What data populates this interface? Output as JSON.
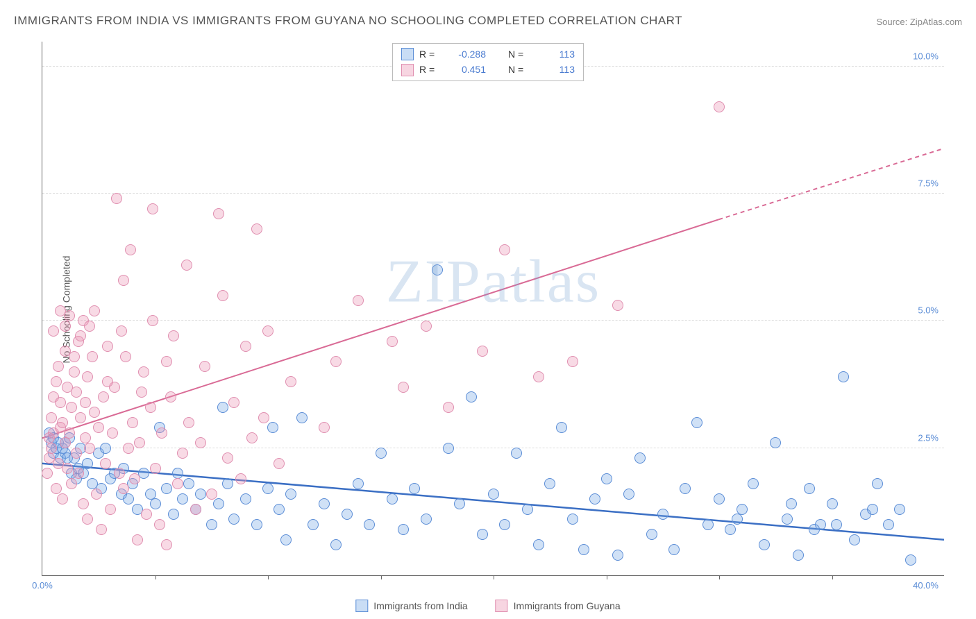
{
  "title": "IMMIGRANTS FROM INDIA VS IMMIGRANTS FROM GUYANA NO SCHOOLING COMPLETED CORRELATION CHART",
  "source": "Source: ZipAtlas.com",
  "y_axis_label": "No Schooling Completed",
  "watermark": "ZIPatlas",
  "chart": {
    "type": "scatter",
    "xlim": [
      0,
      40
    ],
    "ylim": [
      0,
      10.5
    ],
    "xmin_label": "0.0%",
    "xmax_label": "40.0%",
    "y_ticks": [
      2.5,
      5.0,
      7.5,
      10.0
    ],
    "y_tick_labels": [
      "2.5%",
      "5.0%",
      "7.5%",
      "10.0%"
    ],
    "x_minor_ticks": [
      5,
      10,
      15,
      20,
      25,
      30,
      35
    ],
    "grid_color": "#dddddd",
    "axis_color": "#666666",
    "bg": "#ffffff",
    "marker_radius": 8,
    "series": [
      {
        "name": "Immigrants from India",
        "color_fill": "rgba(120,170,230,0.35)",
        "color_stroke": "#5b8dd6",
        "R": "-0.288",
        "N": "113",
        "trend": {
          "x1": 0,
          "y1": 2.2,
          "x2": 40,
          "y2": 0.7,
          "color": "#3b6fc4",
          "width": 2.5
        },
        "points": [
          [
            0.3,
            2.8
          ],
          [
            0.4,
            2.6
          ],
          [
            0.5,
            2.4
          ],
          [
            0.5,
            2.7
          ],
          [
            0.6,
            2.5
          ],
          [
            0.7,
            2.6
          ],
          [
            0.8,
            2.3
          ],
          [
            0.9,
            2.5
          ],
          [
            1.0,
            2.6
          ],
          [
            1.0,
            2.4
          ],
          [
            1.1,
            2.3
          ],
          [
            1.2,
            2.7
          ],
          [
            1.3,
            2.0
          ],
          [
            1.4,
            2.3
          ],
          [
            1.5,
            1.9
          ],
          [
            1.6,
            2.1
          ],
          [
            1.7,
            2.5
          ],
          [
            1.8,
            2.0
          ],
          [
            2.0,
            2.2
          ],
          [
            2.2,
            1.8
          ],
          [
            2.5,
            2.4
          ],
          [
            2.6,
            1.7
          ],
          [
            2.8,
            2.5
          ],
          [
            3.0,
            1.9
          ],
          [
            3.2,
            2.0
          ],
          [
            3.5,
            1.6
          ],
          [
            3.6,
            2.1
          ],
          [
            3.8,
            1.5
          ],
          [
            4.0,
            1.8
          ],
          [
            4.2,
            1.3
          ],
          [
            4.5,
            2.0
          ],
          [
            4.8,
            1.6
          ],
          [
            5.0,
            1.4
          ],
          [
            5.2,
            2.9
          ],
          [
            5.5,
            1.7
          ],
          [
            5.8,
            1.2
          ],
          [
            6.0,
            2.0
          ],
          [
            6.2,
            1.5
          ],
          [
            6.5,
            1.8
          ],
          [
            6.8,
            1.3
          ],
          [
            7.0,
            1.6
          ],
          [
            7.5,
            1.0
          ],
          [
            7.8,
            1.4
          ],
          [
            8.0,
            3.3
          ],
          [
            8.2,
            1.8
          ],
          [
            8.5,
            1.1
          ],
          [
            9.0,
            1.5
          ],
          [
            9.5,
            1.0
          ],
          [
            10.0,
            1.7
          ],
          [
            10.2,
            2.9
          ],
          [
            10.5,
            1.3
          ],
          [
            10.8,
            0.7
          ],
          [
            11.0,
            1.6
          ],
          [
            11.5,
            3.1
          ],
          [
            12.0,
            1.0
          ],
          [
            12.5,
            1.4
          ],
          [
            13.0,
            0.6
          ],
          [
            13.5,
            1.2
          ],
          [
            14.0,
            1.8
          ],
          [
            14.5,
            1.0
          ],
          [
            15.0,
            2.4
          ],
          [
            15.5,
            1.5
          ],
          [
            16.0,
            0.9
          ],
          [
            16.5,
            1.7
          ],
          [
            17.0,
            1.1
          ],
          [
            17.5,
            6.0
          ],
          [
            18.0,
            2.5
          ],
          [
            18.5,
            1.4
          ],
          [
            19.0,
            3.5
          ],
          [
            19.5,
            0.8
          ],
          [
            20.0,
            1.6
          ],
          [
            20.5,
            1.0
          ],
          [
            21.0,
            2.4
          ],
          [
            21.5,
            1.3
          ],
          [
            22.0,
            0.6
          ],
          [
            22.5,
            1.8
          ],
          [
            23.0,
            2.9
          ],
          [
            23.5,
            1.1
          ],
          [
            24.0,
            0.5
          ],
          [
            24.5,
            1.5
          ],
          [
            25.0,
            1.9
          ],
          [
            25.5,
            0.4
          ],
          [
            26.0,
            1.6
          ],
          [
            26.5,
            2.3
          ],
          [
            27.0,
            0.8
          ],
          [
            27.5,
            1.2
          ],
          [
            28.0,
            0.5
          ],
          [
            28.5,
            1.7
          ],
          [
            29.0,
            3.0
          ],
          [
            29.5,
            1.0
          ],
          [
            30.0,
            1.5
          ],
          [
            30.5,
            0.9
          ],
          [
            31.0,
            1.3
          ],
          [
            32.0,
            0.6
          ],
          [
            32.5,
            2.6
          ],
          [
            33.0,
            1.1
          ],
          [
            33.5,
            0.4
          ],
          [
            34.0,
            1.7
          ],
          [
            34.5,
            1.0
          ],
          [
            35.0,
            1.4
          ],
          [
            35.5,
            3.9
          ],
          [
            36.0,
            0.7
          ],
          [
            36.5,
            1.2
          ],
          [
            37.0,
            1.8
          ],
          [
            37.5,
            1.0
          ],
          [
            38.0,
            1.3
          ],
          [
            38.5,
            0.3
          ],
          [
            35.2,
            1.0
          ],
          [
            36.8,
            1.3
          ],
          [
            34.2,
            0.9
          ],
          [
            33.2,
            1.4
          ],
          [
            31.5,
            1.8
          ],
          [
            30.8,
            1.1
          ]
        ]
      },
      {
        "name": "Immigrants from Guyana",
        "color_fill": "rgba(235,150,180,0.35)",
        "color_stroke": "#e08fb0",
        "R": "0.451",
        "N": "113",
        "trend": {
          "x1": 0,
          "y1": 2.7,
          "x2": 30,
          "y2": 7.0,
          "color": "#d96a95",
          "width": 2,
          "dashed_extension": {
            "x1": 30,
            "y1": 7.0,
            "x2": 40,
            "y2": 8.4
          }
        },
        "points": [
          [
            0.2,
            2.0
          ],
          [
            0.3,
            2.3
          ],
          [
            0.3,
            2.7
          ],
          [
            0.4,
            3.1
          ],
          [
            0.4,
            2.5
          ],
          [
            0.5,
            3.5
          ],
          [
            0.5,
            2.8
          ],
          [
            0.6,
            1.7
          ],
          [
            0.6,
            3.8
          ],
          [
            0.7,
            2.2
          ],
          [
            0.7,
            4.1
          ],
          [
            0.8,
            2.9
          ],
          [
            0.8,
            3.4
          ],
          [
            0.9,
            1.5
          ],
          [
            0.9,
            3.0
          ],
          [
            1.0,
            4.4
          ],
          [
            1.0,
            2.6
          ],
          [
            1.1,
            3.7
          ],
          [
            1.1,
            2.1
          ],
          [
            1.2,
            5.1
          ],
          [
            1.2,
            2.8
          ],
          [
            1.3,
            3.3
          ],
          [
            1.3,
            1.8
          ],
          [
            1.4,
            4.0
          ],
          [
            1.5,
            2.4
          ],
          [
            1.5,
            3.6
          ],
          [
            1.6,
            4.6
          ],
          [
            1.6,
            2.0
          ],
          [
            1.7,
            3.1
          ],
          [
            1.8,
            1.4
          ],
          [
            1.8,
            5.0
          ],
          [
            1.9,
            2.7
          ],
          [
            2.0,
            3.9
          ],
          [
            2.0,
            1.1
          ],
          [
            2.1,
            2.5
          ],
          [
            2.2,
            4.3
          ],
          [
            2.3,
            3.2
          ],
          [
            2.4,
            1.6
          ],
          [
            2.5,
            2.9
          ],
          [
            2.6,
            0.9
          ],
          [
            2.7,
            3.5
          ],
          [
            2.8,
            2.2
          ],
          [
            2.9,
            4.5
          ],
          [
            3.0,
            1.3
          ],
          [
            3.1,
            2.8
          ],
          [
            3.2,
            3.7
          ],
          [
            3.3,
            7.4
          ],
          [
            3.4,
            2.0
          ],
          [
            3.5,
            4.8
          ],
          [
            3.6,
            1.7
          ],
          [
            3.8,
            2.5
          ],
          [
            3.9,
            6.4
          ],
          [
            4.0,
            3.0
          ],
          [
            4.1,
            1.9
          ],
          [
            4.2,
            0.7
          ],
          [
            4.3,
            2.6
          ],
          [
            4.5,
            4.0
          ],
          [
            4.6,
            1.2
          ],
          [
            4.8,
            3.3
          ],
          [
            4.9,
            7.2
          ],
          [
            5.0,
            2.1
          ],
          [
            5.2,
            1.0
          ],
          [
            5.3,
            2.8
          ],
          [
            5.5,
            0.6
          ],
          [
            5.7,
            3.5
          ],
          [
            5.8,
            4.7
          ],
          [
            6.0,
            1.8
          ],
          [
            6.2,
            2.4
          ],
          [
            6.4,
            6.1
          ],
          [
            6.5,
            3.0
          ],
          [
            6.8,
            1.3
          ],
          [
            7.0,
            2.6
          ],
          [
            7.2,
            4.1
          ],
          [
            7.5,
            1.6
          ],
          [
            7.8,
            7.1
          ],
          [
            8.0,
            5.5
          ],
          [
            8.2,
            2.3
          ],
          [
            8.5,
            3.4
          ],
          [
            8.8,
            1.9
          ],
          [
            9.0,
            4.5
          ],
          [
            9.3,
            2.7
          ],
          [
            9.5,
            6.8
          ],
          [
            9.8,
            3.1
          ],
          [
            10.0,
            4.8
          ],
          [
            10.5,
            2.2
          ],
          [
            11.0,
            3.8
          ],
          [
            12.5,
            2.9
          ],
          [
            13.0,
            4.2
          ],
          [
            14.0,
            5.4
          ],
          [
            15.5,
            4.6
          ],
          [
            16.0,
            3.7
          ],
          [
            17.0,
            4.9
          ],
          [
            18.0,
            3.3
          ],
          [
            19.5,
            4.4
          ],
          [
            20.5,
            6.4
          ],
          [
            22.0,
            3.9
          ],
          [
            23.5,
            4.2
          ],
          [
            25.5,
            5.3
          ],
          [
            30.0,
            9.2
          ],
          [
            1.0,
            4.9
          ],
          [
            2.3,
            5.2
          ],
          [
            3.6,
            5.8
          ],
          [
            4.9,
            5.0
          ],
          [
            0.8,
            5.2
          ],
          [
            1.4,
            4.3
          ],
          [
            0.5,
            4.8
          ],
          [
            1.7,
            4.7
          ],
          [
            2.1,
            4.9
          ],
          [
            1.9,
            3.4
          ],
          [
            2.9,
            3.8
          ],
          [
            3.7,
            4.3
          ],
          [
            4.4,
            3.6
          ],
          [
            5.5,
            4.2
          ]
        ]
      }
    ],
    "legend_bottom": [
      {
        "swatch": "blue",
        "label": "Immigrants from India"
      },
      {
        "swatch": "pink",
        "label": "Immigrants from Guyana"
      }
    ],
    "legend_top_labels": {
      "R": "R =",
      "N": "N ="
    }
  }
}
